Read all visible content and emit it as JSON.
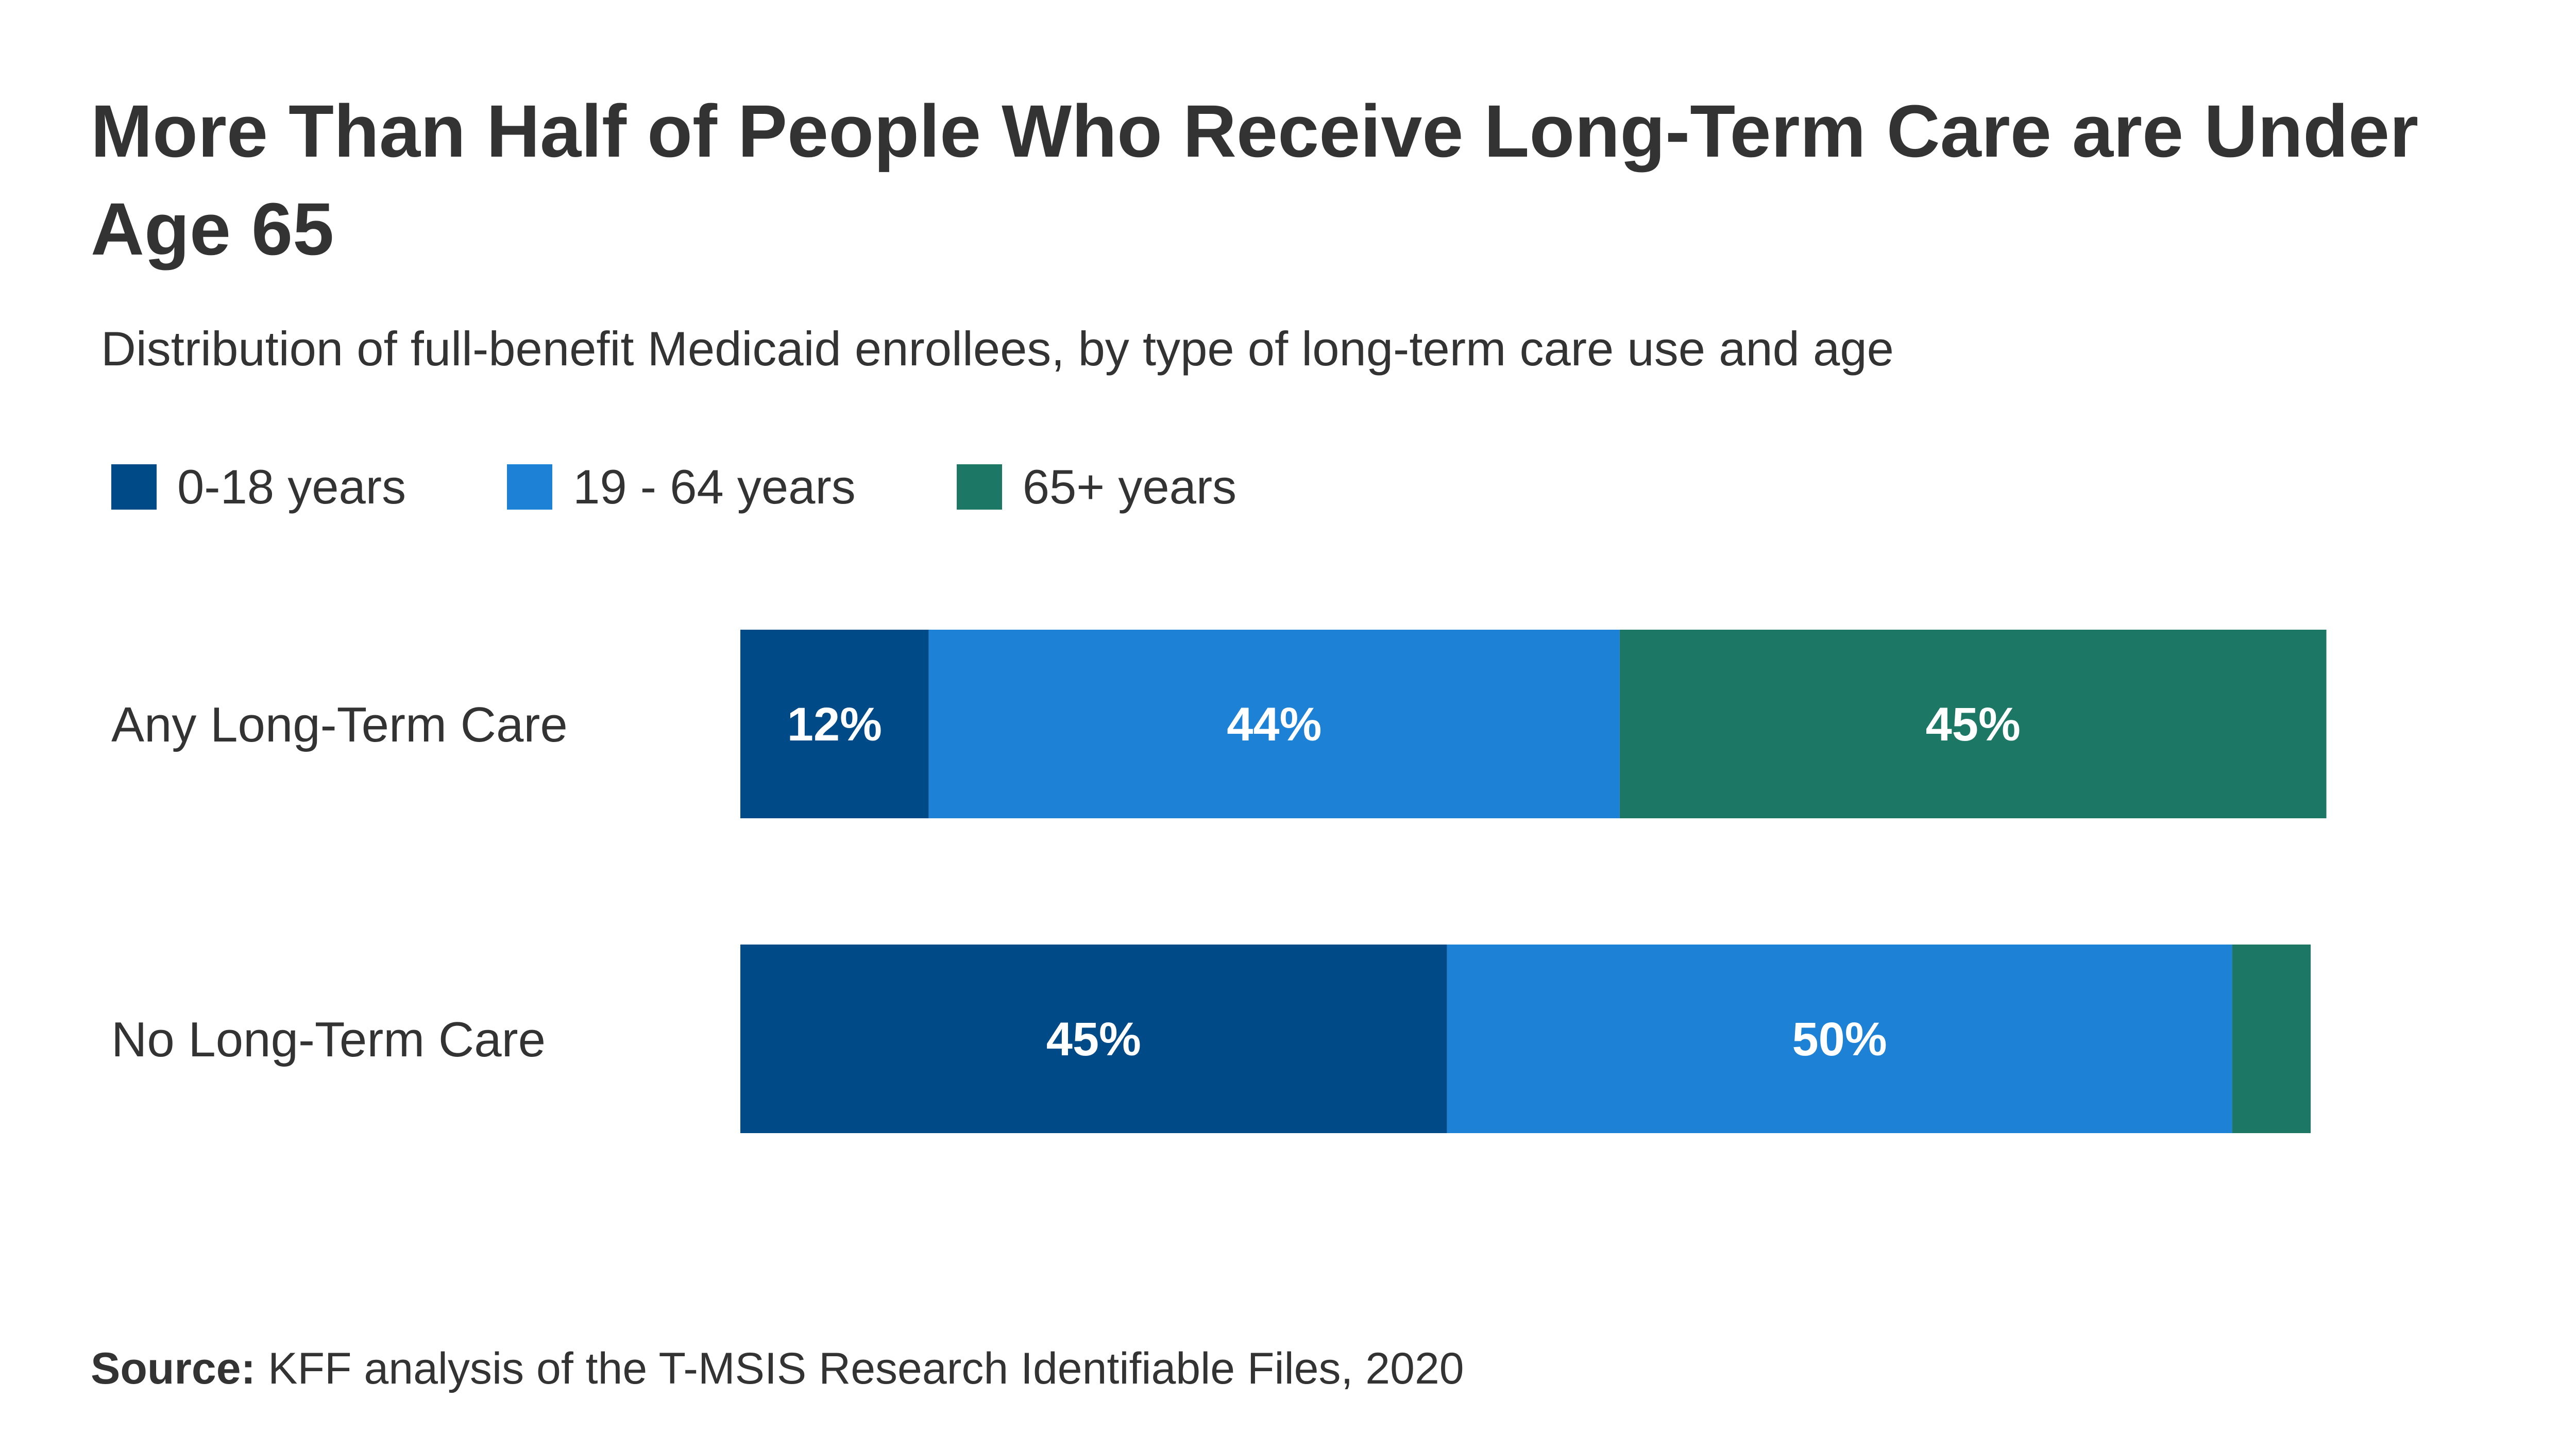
{
  "chart_data": {
    "type": "bar",
    "orientation": "horizontal",
    "stacked": true,
    "title": "More Than Half of People Who Receive Long-Term Care are Under Age 65",
    "subtitle": "Distribution of full-benefit Medicaid enrollees, by type of long-term care use and age",
    "categories": [
      "Any Long-Term Care",
      "No Long-Term Care"
    ],
    "series": [
      {
        "name": "0-18 years",
        "color": "#004A87",
        "values": [
          12,
          45
        ],
        "labels": [
          "12%",
          "45%"
        ]
      },
      {
        "name": "19 - 64 years",
        "color": "#1D81D6",
        "values": [
          44,
          50
        ],
        "labels": [
          "44%",
          "50%"
        ]
      },
      {
        "name": "65+ years",
        "color": "#1C7764",
        "values": [
          45,
          5
        ],
        "labels": [
          "45%",
          ""
        ]
      }
    ],
    "xlim": [
      0,
      100
    ],
    "legend": "top-left",
    "grid": false,
    "xlabel": "",
    "ylabel": ""
  },
  "source": {
    "label": "Source:",
    "text": "KFF analysis of the T-MSIS Research Identifiable Files, 2020"
  }
}
